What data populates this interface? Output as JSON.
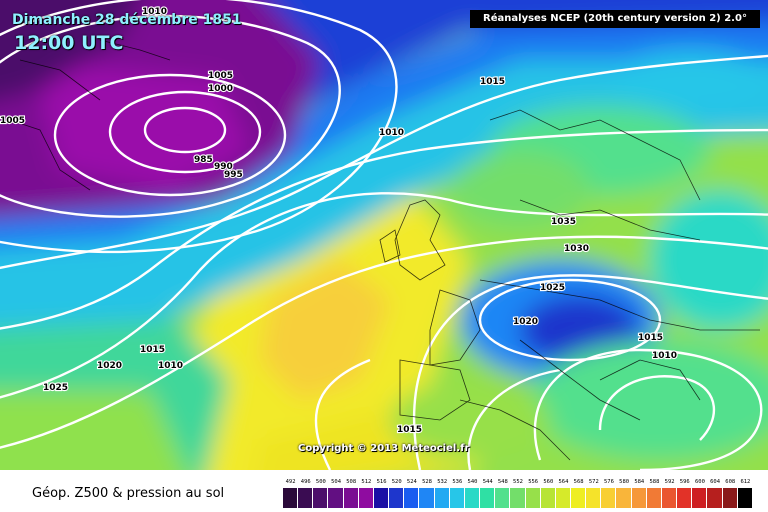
{
  "header": {
    "date_label": "Dimanche 28 décembre 1851",
    "time_label": "12:00 UTC",
    "source_label": "Réanalyses NCEP (20th century version 2) 2.0°"
  },
  "footer": {
    "copyright": "Copyright © 2013 Meteociel.fr",
    "legend_caption": "Géop. Z500 & pression au sol"
  },
  "scale": {
    "values": [
      "492",
      "496",
      "500",
      "504",
      "508",
      "512",
      "516",
      "520",
      "524",
      "528",
      "532",
      "536",
      "540",
      "544",
      "548",
      "552",
      "556",
      "560",
      "564",
      "568",
      "572",
      "576",
      "580",
      "584",
      "588",
      "592",
      "596",
      "600",
      "604",
      "608",
      "612"
    ],
    "colors": [
      "#2b0a3a",
      "#3a0c52",
      "#4c0e6a",
      "#620f82",
      "#7a0d92",
      "#8f0ca0",
      "#1b0fa5",
      "#1e36cc",
      "#1a5cf0",
      "#1f86f5",
      "#22a9f2",
      "#27c6e8",
      "#29d9c6",
      "#2fe0a4",
      "#52e08d",
      "#73de6a",
      "#97e04a",
      "#b7e435",
      "#d6ea2a",
      "#eeee22",
      "#f5e32a",
      "#f8cf34",
      "#f9b53a",
      "#f6983a",
      "#f17a35",
      "#ea5630",
      "#e23228",
      "#ce1f22",
      "#b61f1e",
      "#8a1a1a",
      "#000000"
    ]
  },
  "isobar_labels": [
    "1010",
    "1005",
    "1000",
    "985",
    "990",
    "995",
    "1005",
    "1015",
    "1010",
    "1035",
    "1030",
    "1025",
    "1020",
    "1015",
    "1010",
    "1020",
    "1015",
    "1010",
    "1025",
    "1015"
  ],
  "icons": {
    "isobar": "white-isobar-line"
  }
}
